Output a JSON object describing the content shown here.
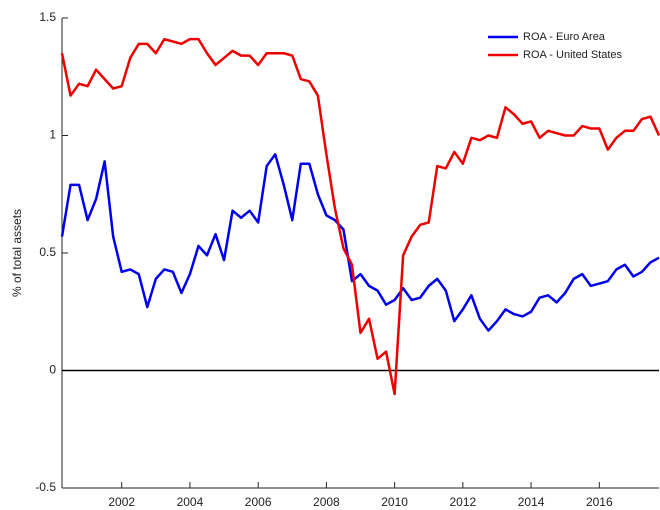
{
  "chart_data": {
    "type": "line",
    "ylabel": "% of total assets",
    "x": [
      2000.25,
      2000.5,
      2000.75,
      2001,
      2001.25,
      2001.5,
      2001.75,
      2002,
      2002.25,
      2002.5,
      2002.75,
      2003,
      2003.25,
      2003.5,
      2003.75,
      2004,
      2004.25,
      2004.5,
      2004.75,
      2005,
      2005.25,
      2005.5,
      2005.75,
      2006,
      2006.25,
      2006.5,
      2006.75,
      2007,
      2007.25,
      2007.5,
      2007.75,
      2008,
      2008.25,
      2008.5,
      2008.75,
      2009,
      2009.25,
      2009.5,
      2009.75,
      2010,
      2010.25,
      2010.5,
      2010.75,
      2011,
      2011.25,
      2011.5,
      2011.75,
      2012,
      2012.25,
      2012.5,
      2012.75,
      2013,
      2013.25,
      2013.5,
      2013.75,
      2014,
      2014.25,
      2014.5,
      2014.75,
      2015,
      2015.25,
      2015.5,
      2015.75,
      2016,
      2016.25,
      2016.5,
      2016.75,
      2017,
      2017.25,
      2017.5,
      2017.75
    ],
    "series": [
      {
        "name": "ROA - Euro Area",
        "color": "#0000ee",
        "values": [
          0.57,
          0.79,
          0.79,
          0.64,
          0.73,
          0.89,
          0.57,
          0.42,
          0.43,
          0.41,
          0.27,
          0.39,
          0.43,
          0.42,
          0.33,
          0.41,
          0.53,
          0.49,
          0.58,
          0.47,
          0.68,
          0.65,
          0.68,
          0.63,
          0.87,
          0.92,
          0.79,
          0.64,
          0.88,
          0.88,
          0.75,
          0.66,
          0.64,
          0.6,
          0.38,
          0.41,
          0.36,
          0.34,
          0.28,
          0.3,
          0.35,
          0.3,
          0.31,
          0.36,
          0.39,
          0.34,
          0.21,
          0.26,
          0.32,
          0.22,
          0.17,
          0.21,
          0.26,
          0.24,
          0.23,
          0.25,
          0.31,
          0.32,
          0.29,
          0.33,
          0.39,
          0.41,
          0.36,
          0.37,
          0.38,
          0.43,
          0.45,
          0.4,
          0.42,
          0.46,
          0.48
        ]
      },
      {
        "name": "ROA - United States",
        "color": "#ee0000",
        "values": [
          1.35,
          1.17,
          1.22,
          1.21,
          1.28,
          1.24,
          1.2,
          1.21,
          1.33,
          1.39,
          1.39,
          1.35,
          1.41,
          1.4,
          1.39,
          1.41,
          1.41,
          1.35,
          1.3,
          1.33,
          1.36,
          1.34,
          1.34,
          1.3,
          1.35,
          1.35,
          1.35,
          1.34,
          1.24,
          1.23,
          1.17,
          0.92,
          0.69,
          0.52,
          0.45,
          0.16,
          0.22,
          0.05,
          0.08,
          -0.1,
          0.49,
          0.57,
          0.62,
          0.63,
          0.87,
          0.86,
          0.93,
          0.88,
          0.99,
          0.98,
          1.0,
          0.99,
          1.12,
          1.09,
          1.05,
          1.06,
          0.99,
          1.02,
          1.01,
          1.0,
          1.0,
          1.04,
          1.03,
          1.03,
          0.94,
          0.99,
          1.02,
          1.02,
          1.07,
          1.08,
          1.0
        ]
      }
    ],
    "xlim": [
      2000.25,
      2017.75
    ],
    "xticks": [
      2002,
      2004,
      2006,
      2008,
      2010,
      2012,
      2014,
      2016
    ],
    "ylim": [
      -0.5,
      1.5
    ],
    "yticks": [
      -0.5,
      0,
      0.5,
      1,
      1.5
    ],
    "hline": 0,
    "legend": "upper right"
  }
}
